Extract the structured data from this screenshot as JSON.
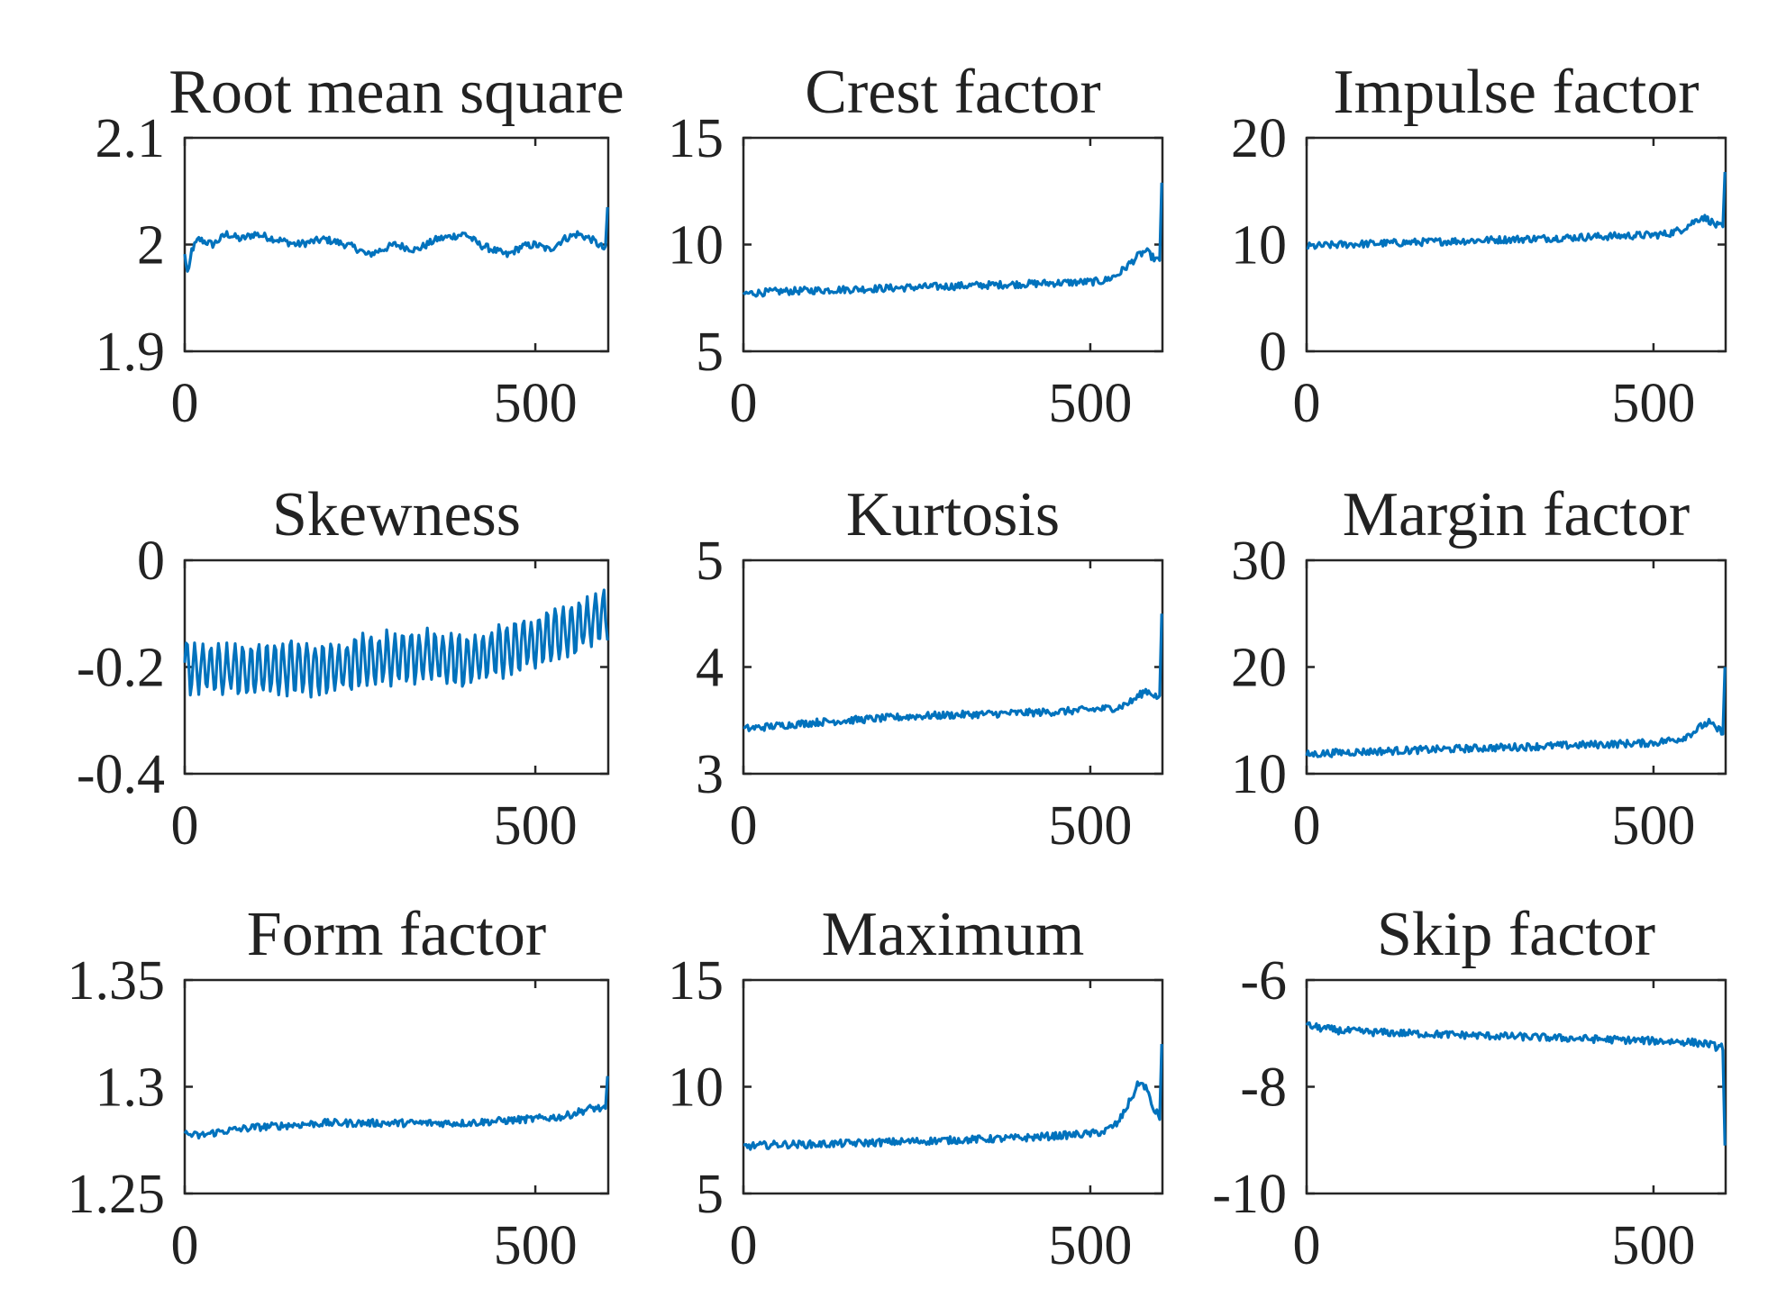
{
  "figure": {
    "line_color": "#0072BD",
    "axis_color": "#262626"
  },
  "chart_data": [
    {
      "type": "line",
      "title": "Root mean square",
      "xlabel": "",
      "ylabel": "",
      "xlim": [
        0,
        604
      ],
      "ylim": [
        1.9,
        2.1
      ],
      "xticks": [
        0,
        500
      ],
      "xtick_labels": [
        "0",
        "500"
      ],
      "yticks": [
        2.1,
        2,
        1.9
      ],
      "ytick_labels": [
        "2.1",
        "2",
        "1.9"
      ],
      "series": [
        {
          "name": "Root mean square",
          "x": [
            0,
            5,
            10,
            20,
            40,
            60,
            80,
            100,
            130,
            160,
            200,
            230,
            250,
            260,
            280,
            300,
            330,
            360,
            400,
            420,
            440,
            460,
            480,
            500,
            520,
            540,
            560,
            580,
            590,
            600,
            603
          ],
          "y": [
            1.99,
            1.97,
            1.995,
            2.005,
            2.0,
            2.01,
            2.005,
            2.01,
            2.005,
            2.0,
            2.005,
            2.0,
            1.995,
            1.99,
            1.995,
            2.0,
            1.995,
            2.005,
            2.01,
            2.0,
            1.995,
            1.99,
            1.998,
            2.0,
            1.995,
            2.005,
            2.01,
            2.005,
            2.0,
            1.995,
            2.035
          ]
        }
      ]
    },
    {
      "type": "line",
      "title": "Crest factor",
      "xlabel": "",
      "ylabel": "",
      "xlim": [
        0,
        604
      ],
      "ylim": [
        5,
        15
      ],
      "xticks": [
        0,
        500
      ],
      "xtick_labels": [
        "0",
        "500"
      ],
      "yticks": [
        15,
        10,
        5
      ],
      "ytick_labels": [
        "15",
        "10",
        "5"
      ],
      "series": [
        {
          "name": "Crest factor",
          "x": [
            0,
            50,
            100,
            150,
            200,
            250,
            300,
            350,
            400,
            450,
            500,
            520,
            540,
            560,
            570,
            580,
            590,
            600,
            603
          ],
          "y": [
            7.7,
            7.8,
            7.85,
            7.9,
            7.95,
            8.0,
            8.05,
            8.1,
            8.15,
            8.2,
            8.25,
            8.3,
            8.6,
            9.2,
            9.5,
            9.7,
            9.4,
            9.2,
            12.9
          ]
        }
      ]
    },
    {
      "type": "line",
      "title": "Impulse factor",
      "xlabel": "",
      "ylabel": "",
      "xlim": [
        0,
        604
      ],
      "ylim": [
        0,
        20
      ],
      "xticks": [
        0,
        500
      ],
      "xtick_labels": [
        "0",
        "500"
      ],
      "yticks": [
        20,
        10,
        0
      ],
      "ytick_labels": [
        "20",
        "10",
        "0"
      ],
      "series": [
        {
          "name": "Impulse factor",
          "x": [
            0,
            50,
            100,
            150,
            200,
            250,
            300,
            350,
            400,
            450,
            500,
            520,
            540,
            560,
            570,
            580,
            590,
            600,
            603
          ],
          "y": [
            9.8,
            10.0,
            10.1,
            10.2,
            10.3,
            10.4,
            10.5,
            10.6,
            10.7,
            10.8,
            10.9,
            11.0,
            11.4,
            12.2,
            12.6,
            12.3,
            11.8,
            11.6,
            16.8
          ]
        }
      ]
    },
    {
      "type": "line",
      "title": "Skewness",
      "xlabel": "",
      "ylabel": "",
      "xlim": [
        0,
        604
      ],
      "ylim": [
        -0.4,
        0
      ],
      "xticks": [
        0,
        500
      ],
      "xtick_labels": [
        "0",
        "500"
      ],
      "yticks": [
        0,
        -0.2,
        -0.4
      ],
      "ytick_labels": [
        "0",
        "-0.2",
        "-0.4"
      ],
      "series": [
        {
          "name": "Skewness",
          "x": [
            0,
            50,
            100,
            150,
            200,
            250,
            300,
            350,
            400,
            450,
            500,
            550,
            600,
            603
          ],
          "y": [
            -0.2,
            -0.205,
            -0.205,
            -0.2,
            -0.205,
            -0.19,
            -0.18,
            -0.18,
            -0.19,
            -0.17,
            -0.15,
            -0.13,
            -0.1,
            -0.15
          ]
        }
      ]
    },
    {
      "type": "line",
      "title": "Kurtosis",
      "xlabel": "",
      "ylabel": "",
      "xlim": [
        0,
        604
      ],
      "ylim": [
        3,
        5
      ],
      "xticks": [
        0,
        500
      ],
      "xtick_labels": [
        "0",
        "500"
      ],
      "yticks": [
        5,
        4,
        3
      ],
      "ytick_labels": [
        "5",
        "4",
        "3"
      ],
      "series": [
        {
          "name": "Kurtosis",
          "x": [
            0,
            50,
            100,
            150,
            200,
            250,
            300,
            350,
            400,
            450,
            500,
            540,
            560,
            580,
            590,
            600,
            603
          ],
          "y": [
            3.42,
            3.45,
            3.48,
            3.5,
            3.52,
            3.54,
            3.55,
            3.56,
            3.57,
            3.58,
            3.6,
            3.62,
            3.68,
            3.78,
            3.75,
            3.7,
            4.5
          ]
        }
      ]
    },
    {
      "type": "line",
      "title": "Margin factor",
      "xlabel": "",
      "ylabel": "",
      "xlim": [
        0,
        604
      ],
      "ylim": [
        10,
        30
      ],
      "xticks": [
        0,
        500
      ],
      "xtick_labels": [
        "0",
        "500"
      ],
      "yticks": [
        30,
        20,
        10
      ],
      "ytick_labels": [
        "30",
        "20",
        "10"
      ],
      "series": [
        {
          "name": "Margin factor",
          "x": [
            0,
            50,
            100,
            150,
            200,
            250,
            300,
            350,
            400,
            450,
            500,
            540,
            560,
            570,
            580,
            590,
            600,
            603
          ],
          "y": [
            11.8,
            12.0,
            12.1,
            12.2,
            12.3,
            12.4,
            12.5,
            12.6,
            12.7,
            12.8,
            12.9,
            13.3,
            14.0,
            14.5,
            14.8,
            14.2,
            14.0,
            20.0
          ]
        }
      ]
    },
    {
      "type": "line",
      "title": "Form factor",
      "xlabel": "",
      "ylabel": "",
      "xlim": [
        0,
        604
      ],
      "ylim": [
        1.25,
        1.35
      ],
      "xticks": [
        0,
        500
      ],
      "xtick_labels": [
        "0",
        "500"
      ],
      "yticks": [
        1.35,
        1.3,
        1.25
      ],
      "ytick_labels": [
        "1.35",
        "1.3",
        "1.25"
      ],
      "series": [
        {
          "name": "Form factor",
          "x": [
            0,
            20,
            50,
            100,
            150,
            200,
            250,
            300,
            350,
            400,
            450,
            500,
            540,
            560,
            580,
            590,
            600,
            603
          ],
          "y": [
            1.278,
            1.277,
            1.279,
            1.281,
            1.282,
            1.283,
            1.283,
            1.283,
            1.283,
            1.283,
            1.284,
            1.285,
            1.286,
            1.288,
            1.29,
            1.29,
            1.289,
            1.305
          ]
        }
      ]
    },
    {
      "type": "line",
      "title": "Maximum",
      "xlabel": "",
      "ylabel": "",
      "xlim": [
        0,
        604
      ],
      "ylim": [
        5,
        15
      ],
      "xticks": [
        0,
        500
      ],
      "xtick_labels": [
        "0",
        "500"
      ],
      "yticks": [
        15,
        10,
        5
      ],
      "ytick_labels": [
        "15",
        "10",
        "5"
      ],
      "series": [
        {
          "name": "Maximum",
          "x": [
            0,
            50,
            100,
            150,
            200,
            250,
            300,
            350,
            400,
            450,
            500,
            520,
            540,
            560,
            570,
            580,
            590,
            600,
            603
          ],
          "y": [
            7.2,
            7.3,
            7.3,
            7.35,
            7.4,
            7.45,
            7.5,
            7.55,
            7.6,
            7.7,
            7.8,
            7.9,
            8.3,
            9.5,
            10.2,
            10.0,
            9.0,
            8.6,
            12.0
          ]
        }
      ]
    },
    {
      "type": "line",
      "title": "Skip factor",
      "xlabel": "",
      "ylabel": "",
      "xlim": [
        0,
        604
      ],
      "ylim": [
        -10,
        -6
      ],
      "xticks": [
        0,
        500
      ],
      "xtick_labels": [
        "0",
        "500"
      ],
      "yticks": [
        -6,
        -8,
        -10
      ],
      "ytick_labels": [
        "-6",
        "-8",
        "-10"
      ],
      "series": [
        {
          "name": "Skip factor",
          "x": [
            0,
            20,
            50,
            100,
            150,
            200,
            250,
            300,
            350,
            400,
            450,
            500,
            550,
            580,
            590,
            600,
            603
          ],
          "y": [
            -6.85,
            -6.9,
            -6.95,
            -6.98,
            -7.0,
            -7.02,
            -7.04,
            -7.06,
            -7.08,
            -7.1,
            -7.12,
            -7.14,
            -7.16,
            -7.2,
            -7.25,
            -7.25,
            -9.1
          ]
        }
      ]
    }
  ]
}
